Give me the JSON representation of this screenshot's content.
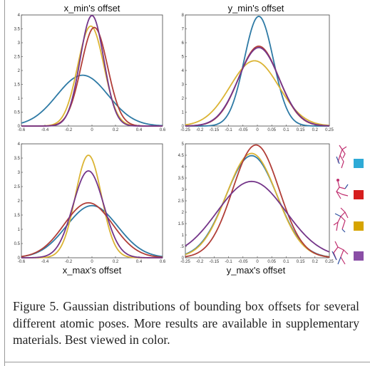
{
  "chart_data": [
    {
      "type": "line",
      "title": "x_min's  offset",
      "xlabel": "",
      "ylabel": "",
      "xlim": [
        -0.6,
        0.6
      ],
      "ylim": [
        0,
        4
      ],
      "xticks": [
        "-0.6",
        "-0.4",
        "-0.2",
        "0",
        "0.2",
        "0.4",
        "0.6"
      ],
      "yticks": [
        "0",
        "0.5",
        "1",
        "1.5",
        "2",
        "2.5",
        "3",
        "3.5",
        "4"
      ],
      "grid": false,
      "series": [
        {
          "color": "#2e7aa5",
          "mean": -0.08,
          "peak": 1.83
        },
        {
          "color": "#dbb434",
          "mean": -0.01,
          "peak": 3.6
        },
        {
          "color": "#b13e38",
          "mean": 0.02,
          "peak": 3.55
        },
        {
          "color": "#743589",
          "mean": 0.0,
          "peak": 3.98
        }
      ]
    },
    {
      "type": "line",
      "title": "y_min's  offset",
      "xlabel": "",
      "ylabel": "",
      "xlim": [
        -0.25,
        0.25
      ],
      "ylim": [
        0,
        8
      ],
      "xticks": [
        "-0.25",
        "-0.2",
        "-0.15",
        "-0.1",
        "-0.05",
        "0",
        "0.05",
        "0.1",
        "0.15",
        "0.2",
        "0.25"
      ],
      "yticks": [
        "0",
        "1",
        "2",
        "3",
        "4",
        "5",
        "6",
        "7",
        "8"
      ],
      "grid": false,
      "series": [
        {
          "color": "#2e7aa5",
          "mean": 0.005,
          "peak": 7.9
        },
        {
          "color": "#dbb434",
          "mean": -0.01,
          "peak": 4.7
        },
        {
          "color": "#b13e38",
          "mean": 0.005,
          "peak": 5.75
        },
        {
          "color": "#743589",
          "mean": 0.005,
          "peak": 5.65
        }
      ]
    },
    {
      "type": "line",
      "title": "",
      "xlabel": "x_max's  offset",
      "ylabel": "",
      "xlim": [
        -0.6,
        0.6
      ],
      "ylim": [
        0,
        4
      ],
      "xticks": [
        "-0.6",
        "-0.4",
        "-0.2",
        "0",
        "0.2",
        "0.4",
        "0.6"
      ],
      "yticks": [
        "0",
        "0.5",
        "1",
        "1.5",
        "2",
        "2.5",
        "3",
        "3.5",
        "4"
      ],
      "grid": false,
      "series": [
        {
          "color": "#2e7aa5",
          "mean": 0.0,
          "peak": 1.83
        },
        {
          "color": "#dbb434",
          "mean": -0.03,
          "peak": 3.6
        },
        {
          "color": "#b13e38",
          "mean": -0.03,
          "peak": 1.93
        },
        {
          "color": "#743589",
          "mean": -0.03,
          "peak": 3.05
        }
      ]
    },
    {
      "type": "line",
      "title": "",
      "xlabel": "y_max's  offset",
      "ylabel": "",
      "xlim": [
        -0.25,
        0.25
      ],
      "ylim": [
        0,
        5
      ],
      "xticks": [
        "-0.25",
        "-0.2",
        "-0.15",
        "-0.1",
        "-0.05",
        "0",
        "0.05",
        "0.1",
        "0.15",
        "0.2",
        "0.25"
      ],
      "yticks": [
        "0",
        ".5",
        "1",
        "1.5",
        "2",
        "2.5",
        "3",
        "3.5",
        "4",
        "4.5",
        "5"
      ],
      "grid": false,
      "series": [
        {
          "color": "#2e7aa5",
          "mean": -0.02,
          "peak": 4.48
        },
        {
          "color": "#dbb434",
          "mean": -0.02,
          "peak": 4.58
        },
        {
          "color": "#b13e38",
          "mean": -0.005,
          "peak": 4.95
        },
        {
          "color": "#743589",
          "mean": -0.02,
          "peak": 3.35
        }
      ]
    }
  ],
  "legend": {
    "items": [
      {
        "swatch_color": "#2eaad6",
        "pose_icon": "pose-figure-icon"
      },
      {
        "swatch_color": "#d61e1e",
        "pose_icon": "pose-figure-icon"
      },
      {
        "swatch_color": "#d6a400",
        "pose_icon": "pose-figure-icon"
      },
      {
        "swatch_color": "#8a4ea6",
        "pose_icon": "pose-figure-icon"
      }
    ]
  },
  "caption": {
    "text": "Figure 5. Gaussian distributions of bounding box offsets for several different atomic poses.  More results are available in supplementary materials. Best viewed in color."
  }
}
